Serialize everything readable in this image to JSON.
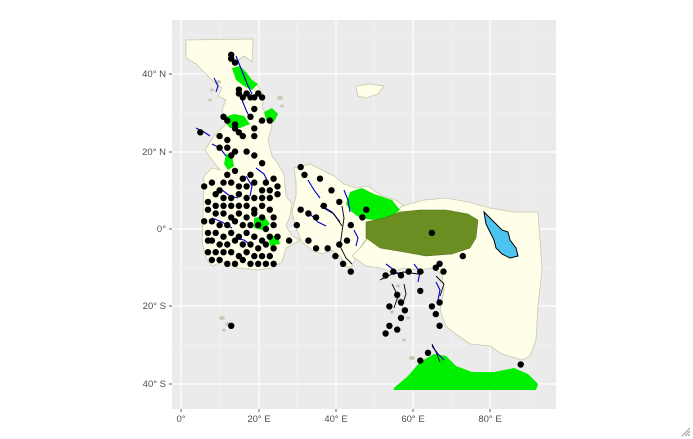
{
  "chart_data": {
    "type": "map",
    "title": "",
    "xlabel": "",
    "ylabel": "",
    "xlim": [
      -2,
      95
    ],
    "ylim": [
      -46,
      53
    ],
    "grid": true,
    "legend": "none",
    "x_ticks": [
      {
        "value": 0,
        "label": "0°"
      },
      {
        "value": 20,
        "label": "20° E"
      },
      {
        "value": 40,
        "label": "40° E"
      },
      {
        "value": 60,
        "label": "60° E"
      },
      {
        "value": 80,
        "label": "80° E"
      }
    ],
    "y_ticks": [
      {
        "value": 40,
        "label": "40° N"
      },
      {
        "value": 20,
        "label": "20° N"
      },
      {
        "value": 0,
        "label": "0°"
      },
      {
        "value": -20,
        "label": "20° S"
      },
      {
        "value": -40,
        "label": "40° S"
      }
    ],
    "colors": {
      "panel_background": "#ebebeb",
      "grid_major": "#ffffff",
      "grid_minor": "#f5f5f5",
      "land": "#fefee9",
      "land_outline": "#c8c8b0",
      "islands": "#c9c9b7",
      "protected_area_bright": "#00ee00",
      "protected_area_dark": "#6b8e23",
      "lake": "#4dc3f0",
      "rivers": "#0000cd",
      "sites": "#000000",
      "tracks": "#000000"
    },
    "points": [
      [
        13,
        45
      ],
      [
        13,
        44
      ],
      [
        14,
        43
      ],
      [
        15,
        36
      ],
      [
        15,
        35
      ],
      [
        16,
        34
      ],
      [
        17,
        35
      ],
      [
        18,
        34
      ],
      [
        19,
        34
      ],
      [
        20,
        35
      ],
      [
        21,
        34
      ],
      [
        19,
        31
      ],
      [
        18,
        29
      ],
      [
        21,
        28
      ],
      [
        23,
        28
      ],
      [
        11,
        29
      ],
      [
        12,
        28
      ],
      [
        14,
        27
      ],
      [
        14,
        26
      ],
      [
        15,
        25
      ],
      [
        16,
        24
      ],
      [
        19,
        26
      ],
      [
        19,
        24
      ],
      [
        5,
        25
      ],
      [
        10,
        24
      ],
      [
        12,
        23
      ],
      [
        17,
        20
      ],
      [
        19,
        19
      ],
      [
        21,
        17
      ],
      [
        14,
        20
      ],
      [
        13,
        19
      ],
      [
        12,
        21
      ],
      [
        10,
        21
      ],
      [
        12,
        14
      ],
      [
        14,
        15
      ],
      [
        16,
        13
      ],
      [
        18,
        14
      ],
      [
        22,
        12
      ],
      [
        24,
        13
      ],
      [
        25,
        11
      ],
      [
        11,
        12
      ],
      [
        10,
        10
      ],
      [
        8,
        12
      ],
      [
        6,
        11
      ],
      [
        13,
        12
      ],
      [
        15,
        11
      ],
      [
        17,
        11
      ],
      [
        19,
        12
      ],
      [
        21,
        10
      ],
      [
        23,
        10
      ],
      [
        9,
        9
      ],
      [
        11,
        8
      ],
      [
        13,
        8
      ],
      [
        15,
        9
      ],
      [
        17,
        8
      ],
      [
        19,
        8
      ],
      [
        21,
        8
      ],
      [
        23,
        8
      ],
      [
        25,
        9
      ],
      [
        7,
        7
      ],
      [
        9,
        6
      ],
      [
        11,
        6
      ],
      [
        13,
        6
      ],
      [
        15,
        6
      ],
      [
        17,
        6
      ],
      [
        19,
        5
      ],
      [
        21,
        6
      ],
      [
        23,
        5
      ],
      [
        7,
        5
      ],
      [
        9,
        4
      ],
      [
        11,
        4
      ],
      [
        13,
        3
      ],
      [
        15,
        4
      ],
      [
        17,
        3
      ],
      [
        19,
        4
      ],
      [
        21,
        3
      ],
      [
        24,
        3
      ],
      [
        6,
        2
      ],
      [
        8,
        2
      ],
      [
        10,
        1
      ],
      [
        12,
        1
      ],
      [
        14,
        2
      ],
      [
        16,
        1
      ],
      [
        18,
        1
      ],
      [
        20,
        1
      ],
      [
        22,
        0
      ],
      [
        24,
        1
      ],
      [
        7,
        -1
      ],
      [
        9,
        -1
      ],
      [
        11,
        -2
      ],
      [
        13,
        -1
      ],
      [
        15,
        -2
      ],
      [
        17,
        -1
      ],
      [
        19,
        -2
      ],
      [
        21,
        -3
      ],
      [
        23,
        -2
      ],
      [
        8,
        -3
      ],
      [
        10,
        -4
      ],
      [
        12,
        -4
      ],
      [
        14,
        -3
      ],
      [
        16,
        -4
      ],
      [
        18,
        -4
      ],
      [
        20,
        -5
      ],
      [
        22,
        -4
      ],
      [
        24,
        -5
      ],
      [
        7,
        -6
      ],
      [
        9,
        -6
      ],
      [
        11,
        -6
      ],
      [
        13,
        -6
      ],
      [
        15,
        -7
      ],
      [
        17,
        -6
      ],
      [
        19,
        -7
      ],
      [
        21,
        -7
      ],
      [
        23,
        -7
      ],
      [
        8,
        -8
      ],
      [
        10,
        -8
      ],
      [
        12,
        -9
      ],
      [
        14,
        -9
      ],
      [
        16,
        -8
      ],
      [
        18,
        -9
      ],
      [
        20,
        -9
      ],
      [
        22,
        -9
      ],
      [
        24,
        -9
      ],
      [
        13,
        -25
      ],
      [
        7,
        -3
      ],
      [
        25,
        -2
      ],
      [
        31,
        16
      ],
      [
        32,
        14
      ],
      [
        36,
        13
      ],
      [
        37,
        6
      ],
      [
        39,
        10
      ],
      [
        41,
        7
      ],
      [
        31,
        5
      ],
      [
        33,
        4
      ],
      [
        35,
        3
      ],
      [
        30,
        1
      ],
      [
        28,
        -3
      ],
      [
        33,
        -3
      ],
      [
        35,
        -5
      ],
      [
        38,
        -5
      ],
      [
        41,
        -4
      ],
      [
        43,
        -3
      ],
      [
        44,
        1
      ],
      [
        47,
        3
      ],
      [
        48,
        5
      ],
      [
        40,
        -7
      ],
      [
        42,
        -9
      ],
      [
        44,
        -11
      ],
      [
        53,
        -12
      ],
      [
        57,
        -12
      ],
      [
        59,
        -11
      ],
      [
        55,
        -11
      ],
      [
        62,
        -11
      ],
      [
        66,
        -10
      ],
      [
        67,
        -9
      ],
      [
        68,
        -11
      ],
      [
        73,
        -7
      ],
      [
        56,
        -17
      ],
      [
        57,
        -19
      ],
      [
        54,
        -20
      ],
      [
        58,
        -21
      ],
      [
        57,
        -23
      ],
      [
        54,
        -25
      ],
      [
        56,
        -26
      ],
      [
        53,
        -27
      ],
      [
        65,
        -20
      ],
      [
        67,
        -19
      ],
      [
        66,
        -22
      ],
      [
        67,
        -25
      ],
      [
        62,
        -16
      ],
      [
        65,
        -1
      ],
      [
        88,
        -35
      ],
      [
        62,
        -34
      ],
      [
        64,
        -32
      ]
    ]
  }
}
